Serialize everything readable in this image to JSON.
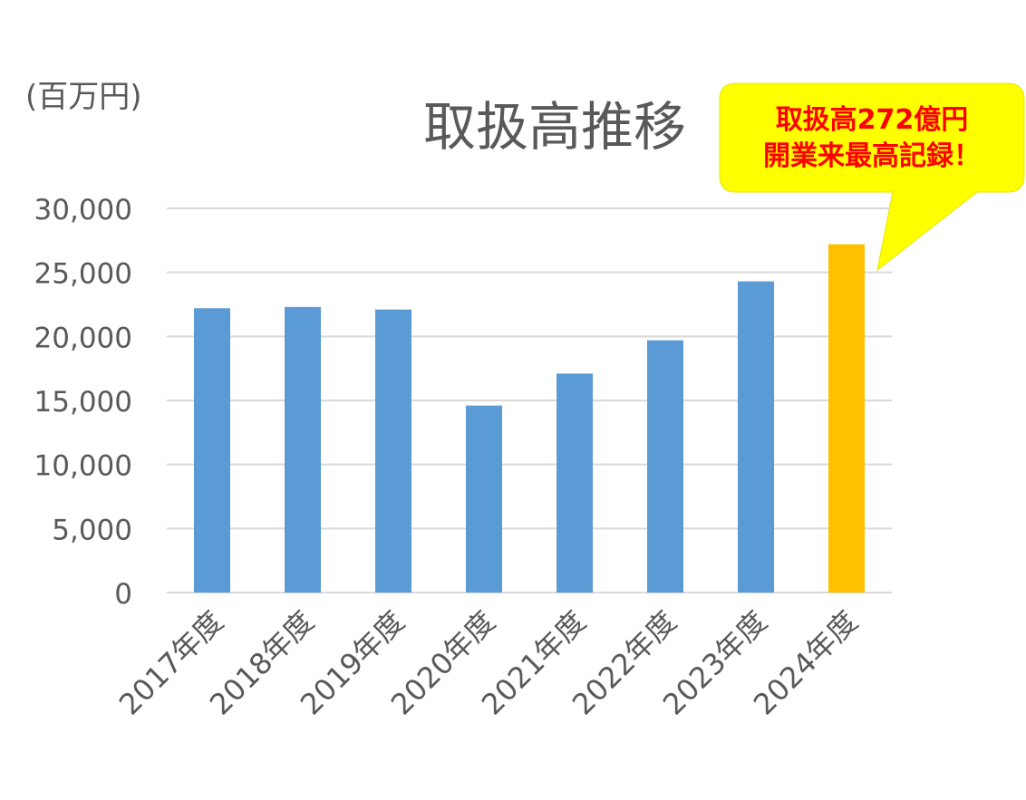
{
  "chart_data": {
    "type": "bar",
    "title": "取扱高推移",
    "unit_label": "(百万円)",
    "categories": [
      "2017年度",
      "2018年度",
      "2019年度",
      "2020年度",
      "2021年度",
      "2022年度",
      "2023年度",
      "2024年度"
    ],
    "values": [
      22200,
      22300,
      22100,
      14600,
      17100,
      19700,
      24300,
      27200
    ],
    "highlight_index": 7,
    "ylim": [
      0,
      30000
    ],
    "yticks": [
      0,
      5000,
      10000,
      15000,
      20000,
      25000,
      30000
    ],
    "ytick_labels": [
      "0",
      "5,000",
      "10,000",
      "15,000",
      "20,000",
      "25,000",
      "30,000"
    ],
    "grid": true,
    "legend": "none",
    "colors": {
      "bar": "#5b9bd5",
      "highlight": "#ffc000",
      "grid": "#d9d9d9",
      "text": "#595959",
      "callout_fill": "#ffff00",
      "callout_text": "#ff0000"
    },
    "callout": {
      "line1": "取扱高272億円",
      "line2": "開業来最高記録！"
    }
  }
}
